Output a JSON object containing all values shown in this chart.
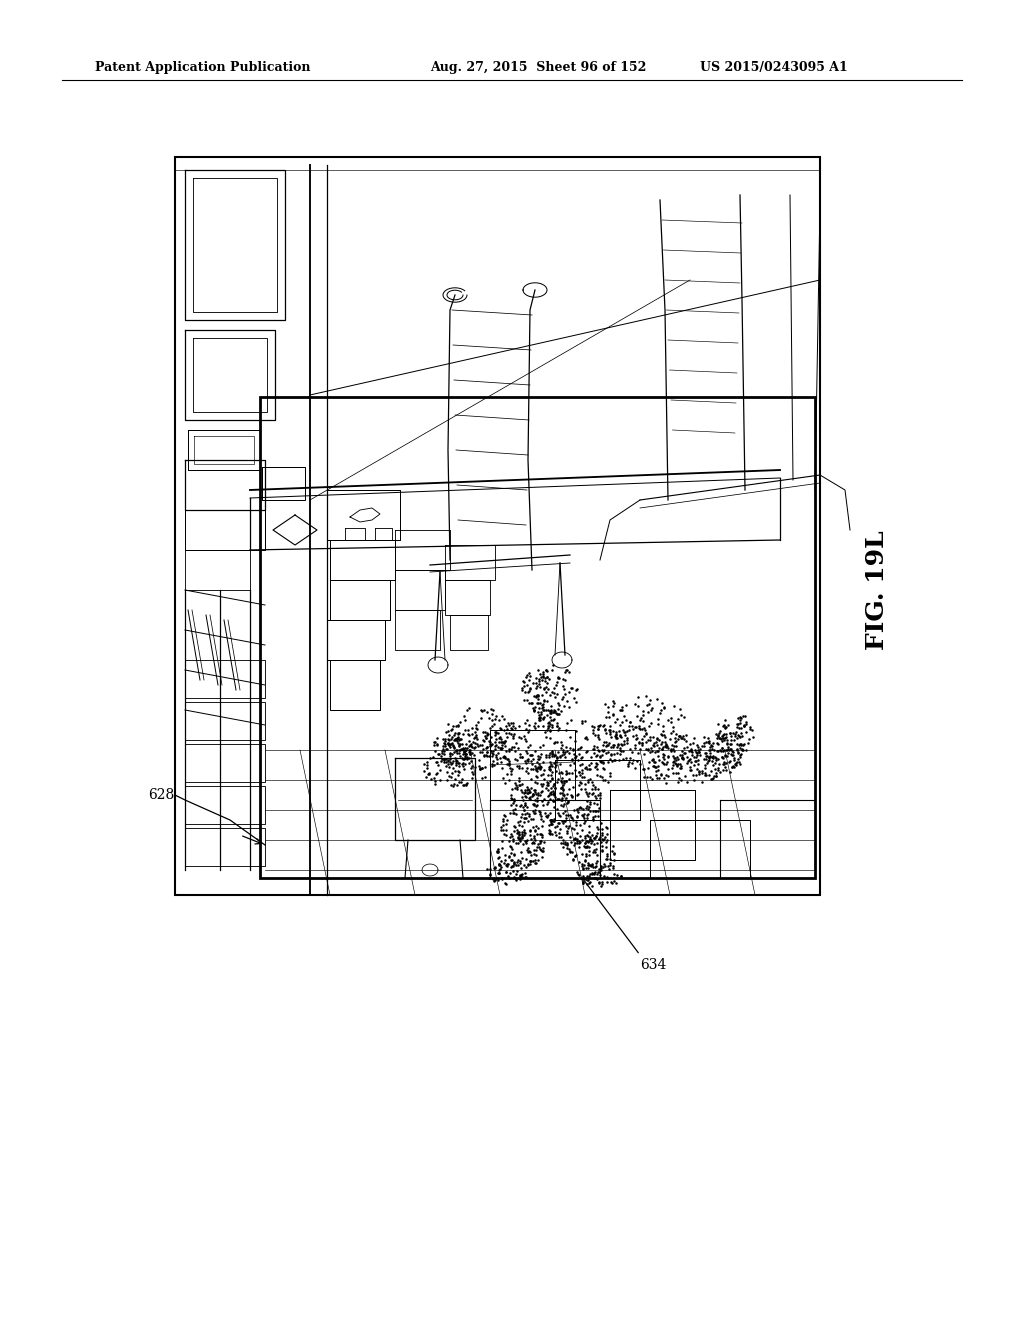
{
  "title_left": "Patent Application Publication",
  "title_mid": "Aug. 27, 2015  Sheet 96 of 152",
  "title_right": "US 2015/0243095 A1",
  "fig_label": "FIG. 19L",
  "label_628": "628",
  "label_634": "634",
  "bg_color": "#ffffff",
  "line_color": "#000000"
}
